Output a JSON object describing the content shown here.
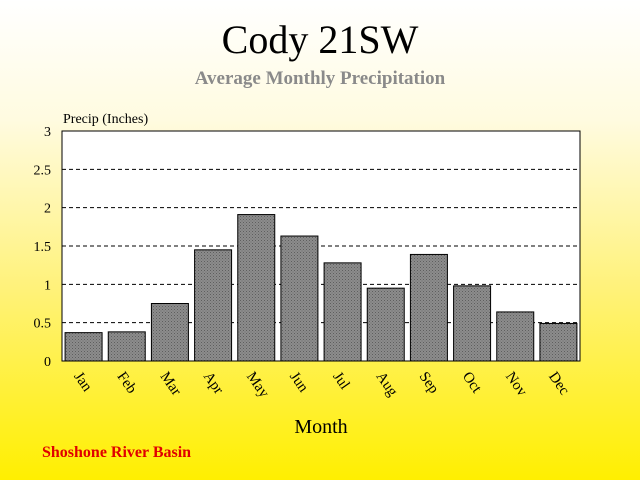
{
  "chart_data": {
    "type": "bar",
    "title": "Cody 21SW",
    "subtitle": "Average Monthly Precipitation",
    "ylabel": "Precip (Inches)",
    "xlabel": "Month",
    "categories": [
      "Jan",
      "Feb",
      "Mar",
      "Apr",
      "May",
      "Jun",
      "Jul",
      "Aug",
      "Sep",
      "Oct",
      "Nov",
      "Dec"
    ],
    "values": [
      0.37,
      0.38,
      0.75,
      1.45,
      1.91,
      1.63,
      1.28,
      0.95,
      1.39,
      0.98,
      0.64,
      0.49
    ],
    "ylim": [
      0,
      3
    ],
    "yticks": [
      0,
      0.5,
      1,
      1.5,
      2,
      2.5,
      3
    ],
    "ytick_labels": [
      "0",
      "0.5",
      "1",
      "1.5",
      "2",
      "2.5",
      "3"
    ],
    "grid": "dashed horizontal",
    "bar_color": "#808080",
    "footer": "Shoshone River Basin"
  }
}
